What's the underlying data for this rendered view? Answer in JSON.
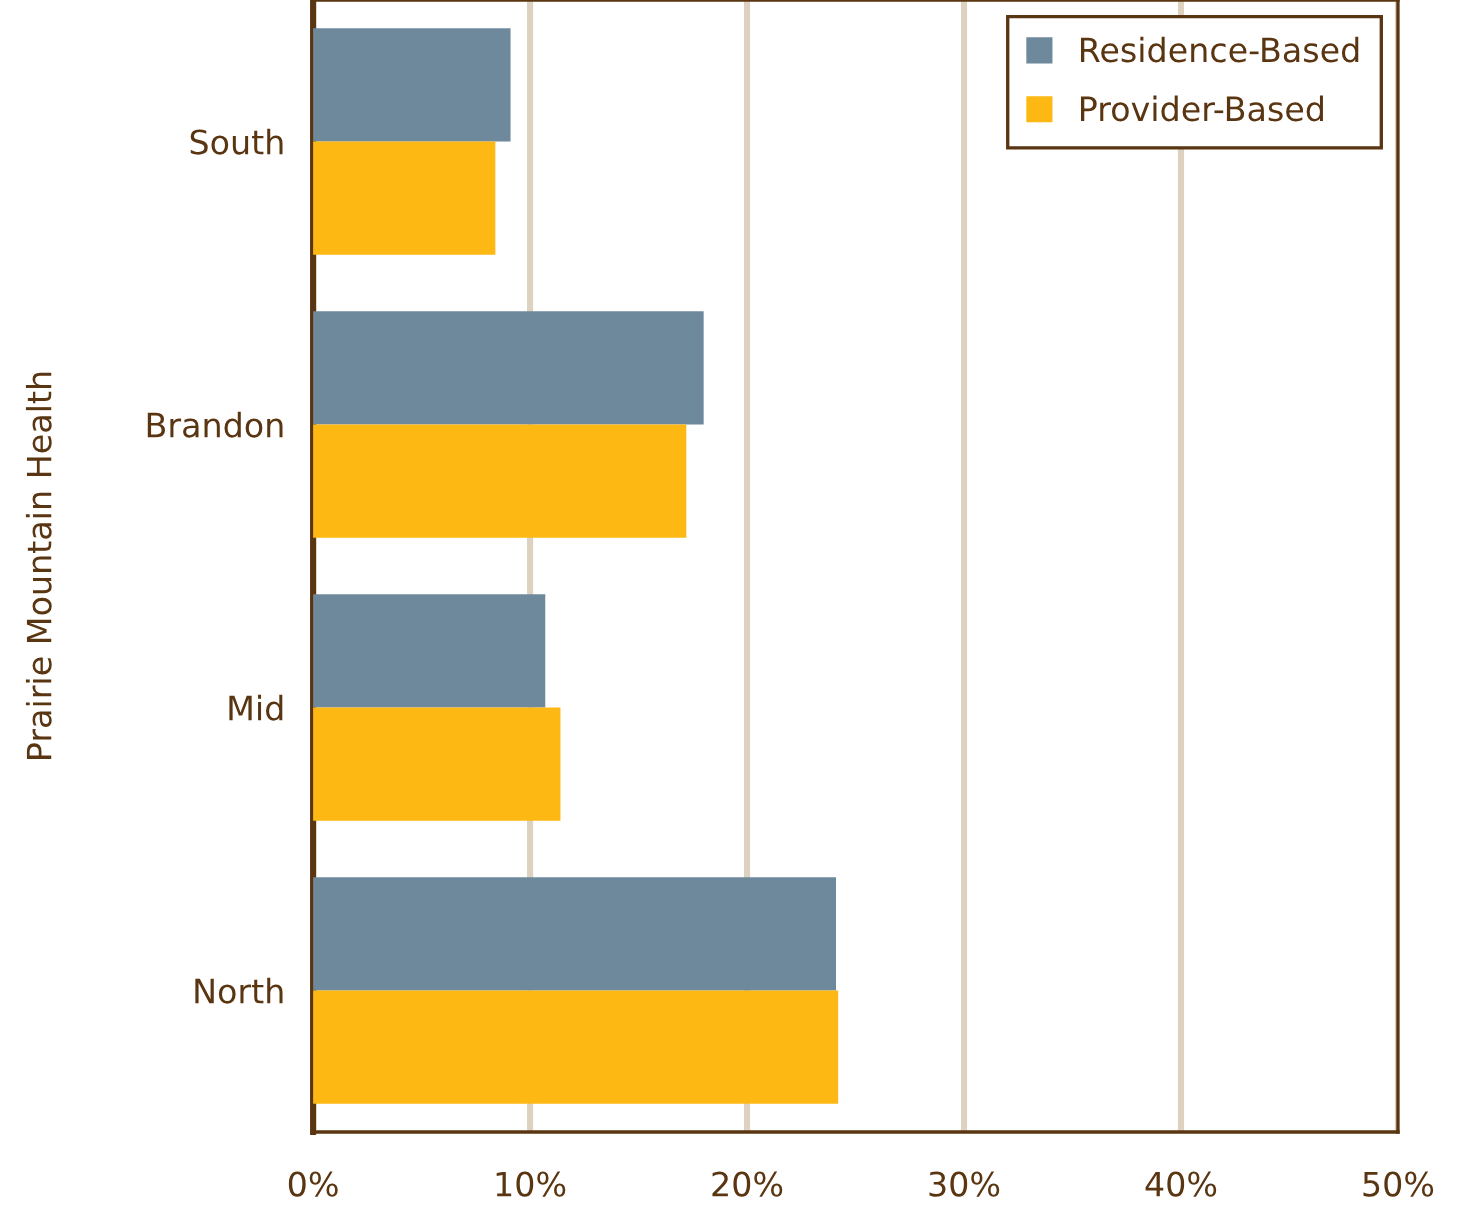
{
  "chart_data": {
    "type": "bar",
    "orientation": "horizontal",
    "ylabel": "Prairie Mountain Health",
    "categories": [
      "South",
      "Brandon",
      "Mid",
      "North"
    ],
    "series": [
      {
        "name": "Residence-Based",
        "color": "#6e889c",
        "values": [
          9.1,
          18.0,
          10.7,
          24.1
        ]
      },
      {
        "name": "Provider-Based",
        "color": "#fdb813",
        "values": [
          8.4,
          17.2,
          11.4,
          24.2
        ]
      }
    ],
    "xlim": [
      0,
      50
    ],
    "xticks": [
      {
        "value": 0,
        "label": "0%"
      },
      {
        "value": 10,
        "label": "10%"
      },
      {
        "value": 20,
        "label": "20%"
      },
      {
        "value": 30,
        "label": "30%"
      },
      {
        "value": 40,
        "label": "40%"
      },
      {
        "value": 50,
        "label": "50%"
      }
    ],
    "grid": "x",
    "legend": "top right"
  }
}
